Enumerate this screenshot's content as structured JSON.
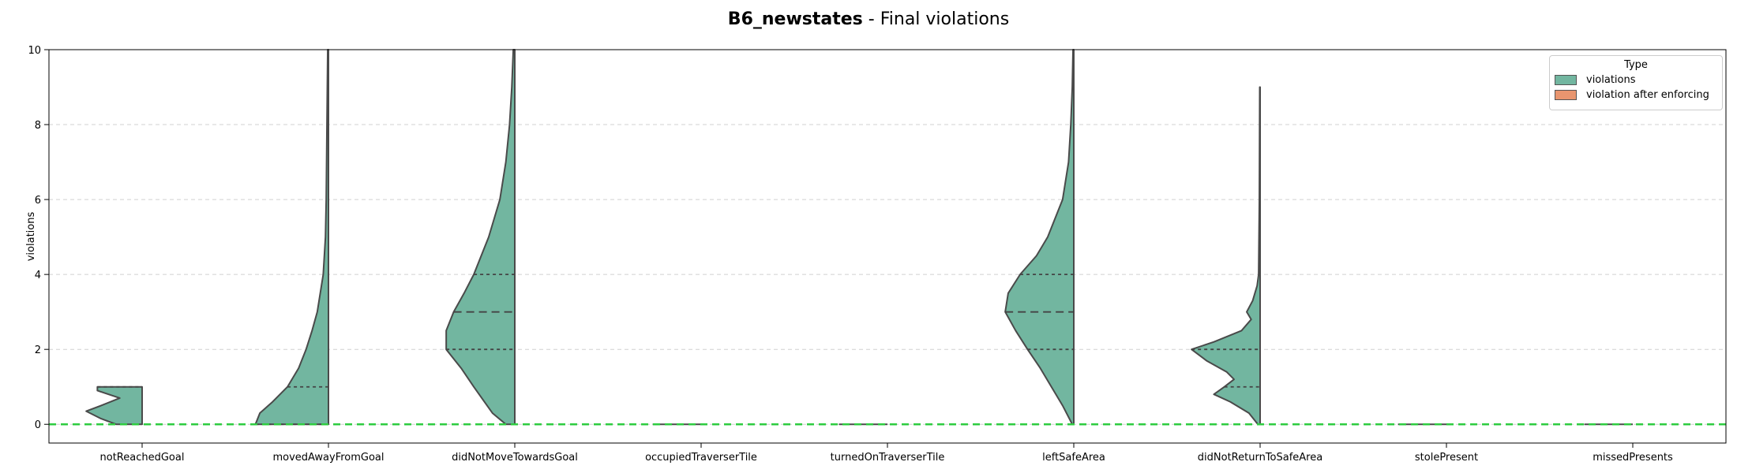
{
  "title_bold": "B6_newstates",
  "title_rest": " - Final violations",
  "chart_data": {
    "type": "violin",
    "title": "B6_newstates - Final violations",
    "xlabel": "",
    "ylabel": "violations",
    "ylim": [
      -0.5,
      10
    ],
    "yticks": [
      0,
      2,
      4,
      6,
      8,
      10
    ],
    "grid": "y-dashed",
    "reference_line": {
      "y": 0,
      "color": "#2ecc40",
      "style": "dashed"
    },
    "categories": [
      "notReachedGoal",
      "movedAwayFromGoal",
      "didNotMoveTowardsGoal",
      "occupiedTraverserTile",
      "turnedOnTraverserTile",
      "leftSafeArea",
      "didNotReturnToSafeArea",
      "stolePresent",
      "missedPresents"
    ],
    "legend": {
      "title": "Type",
      "placement": "top-right",
      "entries": [
        {
          "label": "violations",
          "color": "#72b6a0"
        },
        {
          "label": "violation after enforcing",
          "color": "#e8956f"
        }
      ]
    },
    "series": [
      {
        "name": "violations",
        "color": "#72b6a0",
        "violins": [
          {
            "ymin": 0,
            "ymax": 1,
            "quartiles": [
              1
            ],
            "profile": [
              [
                0,
                0.35
              ],
              [
                0.15,
                0.55
              ],
              [
                0.35,
                0.75
              ],
              [
                0.5,
                0.55
              ],
              [
                0.7,
                0.3
              ],
              [
                0.9,
                0.6
              ],
              [
                1,
                0.6
              ]
            ]
          },
          {
            "ymin": 0,
            "ymax": 10,
            "quartiles": [
              0,
              1
            ],
            "profile": [
              [
                0,
                0.98
              ],
              [
                0.3,
                0.92
              ],
              [
                0.6,
                0.75
              ],
              [
                1,
                0.55
              ],
              [
                1.5,
                0.4
              ],
              [
                2,
                0.3
              ],
              [
                2.5,
                0.22
              ],
              [
                3,
                0.15
              ],
              [
                4,
                0.07
              ],
              [
                5,
                0.04
              ],
              [
                6,
                0.03
              ],
              [
                8,
                0.02
              ],
              [
                10,
                0.01
              ]
            ]
          },
          {
            "ymin": 0,
            "ymax": 10,
            "quartiles": [
              2,
              3,
              4
            ],
            "profile": [
              [
                0,
                0.12
              ],
              [
                0.3,
                0.3
              ],
              [
                1,
                0.55
              ],
              [
                1.5,
                0.72
              ],
              [
                2,
                0.92
              ],
              [
                2.5,
                0.92
              ],
              [
                3,
                0.82
              ],
              [
                3.5,
                0.68
              ],
              [
                4,
                0.55
              ],
              [
                5,
                0.35
              ],
              [
                6,
                0.2
              ],
              [
                7,
                0.12
              ],
              [
                8,
                0.07
              ],
              [
                9,
                0.04
              ],
              [
                10,
                0.02
              ]
            ]
          },
          {
            "ymin": 0,
            "ymax": 0,
            "quartiles": [],
            "profile": [
              [
                0,
                0.65
              ]
            ]
          },
          {
            "ymin": 0,
            "ymax": 0,
            "quartiles": [],
            "profile": [
              [
                0,
                0.65
              ]
            ]
          },
          {
            "ymin": 0,
            "ymax": 10,
            "quartiles": [
              2,
              3,
              4
            ],
            "profile": [
              [
                0,
                0.02
              ],
              [
                0.5,
                0.15
              ],
              [
                1,
                0.3
              ],
              [
                1.5,
                0.45
              ],
              [
                2,
                0.62
              ],
              [
                2.5,
                0.78
              ],
              [
                3,
                0.92
              ],
              [
                3.5,
                0.88
              ],
              [
                4,
                0.72
              ],
              [
                4.5,
                0.5
              ],
              [
                5,
                0.35
              ],
              [
                6,
                0.15
              ],
              [
                7,
                0.07
              ],
              [
                8,
                0.04
              ],
              [
                9,
                0.02
              ],
              [
                10,
                0.01
              ]
            ]
          },
          {
            "ymin": 0,
            "ymax": 9,
            "quartiles": [
              1,
              2
            ],
            "profile": [
              [
                0,
                0.03
              ],
              [
                0.3,
                0.15
              ],
              [
                0.6,
                0.4
              ],
              [
                0.8,
                0.62
              ],
              [
                1,
                0.48
              ],
              [
                1.2,
                0.35
              ],
              [
                1.4,
                0.45
              ],
              [
                1.7,
                0.72
              ],
              [
                2,
                0.92
              ],
              [
                2.2,
                0.62
              ],
              [
                2.5,
                0.25
              ],
              [
                2.8,
                0.12
              ],
              [
                3,
                0.18
              ],
              [
                3.3,
                0.1
              ],
              [
                3.7,
                0.04
              ],
              [
                4,
                0.02
              ],
              [
                6,
                0.01
              ],
              [
                9,
                0.005
              ]
            ]
          },
          {
            "ymin": 0,
            "ymax": 0,
            "quartiles": [],
            "profile": [
              [
                0,
                0.65
              ]
            ]
          },
          {
            "ymin": 0,
            "ymax": 0,
            "quartiles": [],
            "profile": [
              [
                0,
                0.65
              ]
            ]
          }
        ]
      },
      {
        "name": "violation after enforcing",
        "color": "#e8956f",
        "violins": []
      }
    ]
  }
}
